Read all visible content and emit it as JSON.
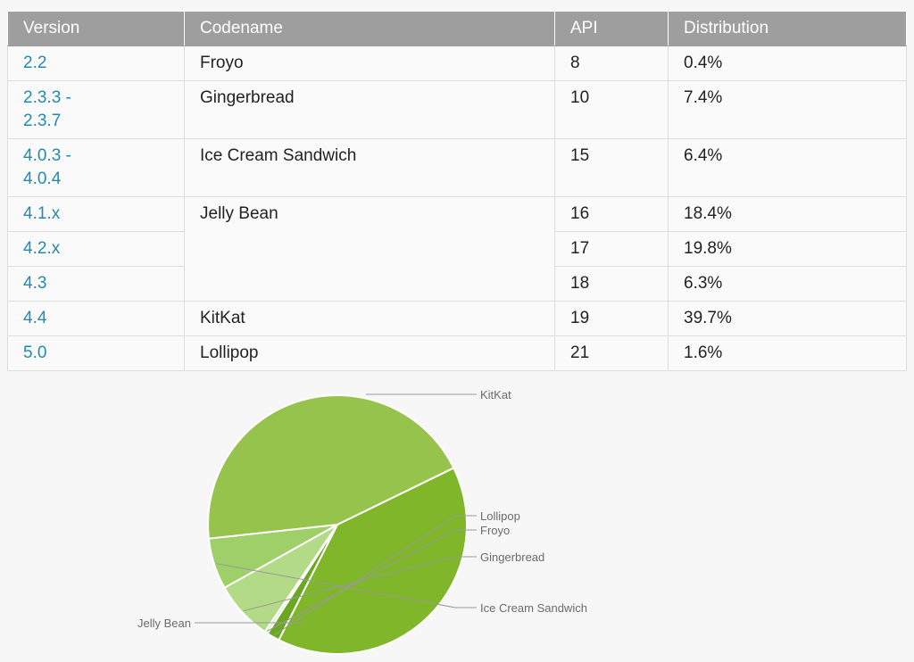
{
  "table": {
    "headers": [
      "Version",
      "Codename",
      "API",
      "Distribution"
    ],
    "rows": [
      {
        "version": "2.2",
        "codename": "Froyo",
        "api": "8",
        "distribution": "0.4%"
      },
      {
        "version": "2.3.3 -\n2.3.7",
        "codename": "Gingerbread",
        "api": "10",
        "distribution": "7.4%"
      },
      {
        "version": "4.0.3 -\n4.0.4",
        "codename": "Ice Cream Sandwich",
        "api": "15",
        "distribution": "6.4%"
      },
      {
        "version": "4.1.x",
        "codename": "Jelly Bean",
        "api": "16",
        "distribution": "18.4%"
      },
      {
        "version": "4.2.x",
        "codename": "",
        "api": "17",
        "distribution": "19.8%"
      },
      {
        "version": "4.3",
        "codename": "",
        "api": "18",
        "distribution": "6.3%"
      },
      {
        "version": "4.4",
        "codename": "KitKat",
        "api": "19",
        "distribution": "39.7%"
      },
      {
        "version": "5.0",
        "codename": "Lollipop",
        "api": "21",
        "distribution": "1.6%"
      }
    ]
  },
  "colors": {
    "header_bg": "#9e9e9e",
    "version_link": "#258aaf",
    "kitkat": "#7fb62a",
    "lollipop": "#6aa822",
    "froyo": "#daeec0",
    "gingerbread": "#b3da87",
    "ice_cream_sandwich": "#9fcf69",
    "jelly_bean": "#96c34b"
  },
  "chart_data": {
    "type": "pie",
    "title": "",
    "slices": [
      {
        "label": "KitKat",
        "value": 39.7,
        "color": "#7fb62a"
      },
      {
        "label": "Lollipop",
        "value": 1.6,
        "color": "#6aa822"
      },
      {
        "label": "Froyo",
        "value": 0.4,
        "color": "#daeec0"
      },
      {
        "label": "Gingerbread",
        "value": 7.4,
        "color": "#b3da87"
      },
      {
        "label": "Ice Cream Sandwich",
        "value": 6.4,
        "color": "#9fcf69"
      },
      {
        "label": "Jelly Bean",
        "value": 44.5,
        "color": "#96c34b"
      }
    ]
  }
}
